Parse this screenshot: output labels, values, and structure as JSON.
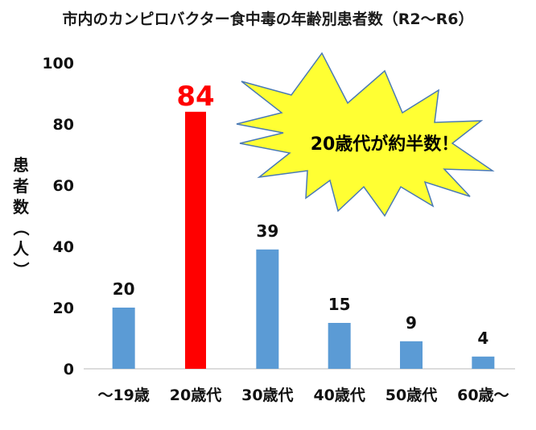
{
  "chart_data": {
    "type": "bar",
    "title": "市内のカンピロバクター食中毒の年齢別患者数（R2〜R6）",
    "ylabel": "患者数（人）",
    "xlabel": "",
    "categories": [
      "〜19歳",
      "20歳代",
      "30歳代",
      "40歳代",
      "50歳代",
      "60歳〜"
    ],
    "values": [
      20,
      84,
      39,
      15,
      9,
      4
    ],
    "ylim": [
      0,
      100
    ],
    "yticks": [
      0,
      20,
      40,
      60,
      80,
      100
    ],
    "grid": false,
    "colors": {
      "bar": "#5b9bd5",
      "highlight_bar": "#ff0000",
      "callout_fill": "#ffff33",
      "callout_stroke": "#4a7ab5"
    },
    "highlight_category": "20歳代",
    "annotation": "20歳代が約半数！"
  }
}
